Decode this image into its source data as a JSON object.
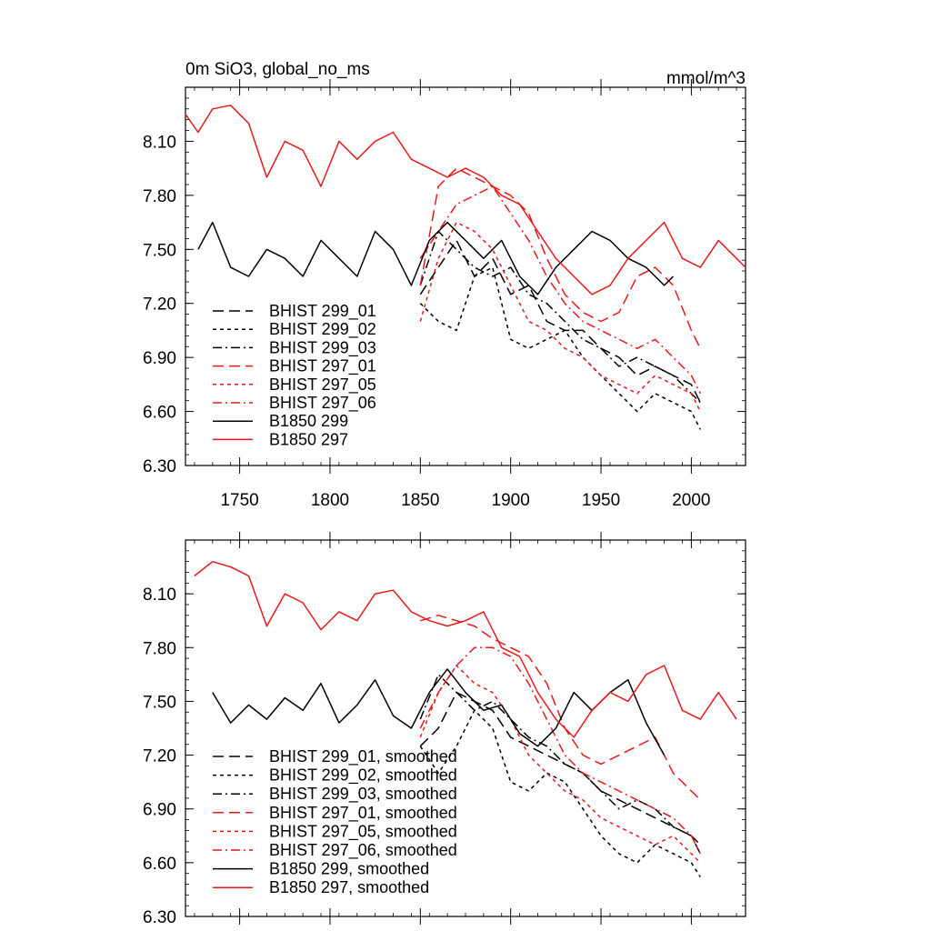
{
  "chart_data": [
    {
      "type": "line",
      "title": "0m SiO3, global_no_ms",
      "units": "mmol/m^3",
      "xlim": [
        1720,
        2030
      ],
      "ylim": [
        6.3,
        8.4
      ],
      "xticks": [
        1750,
        1800,
        1850,
        1900,
        1950,
        2000
      ],
      "xtick_labels": [
        "1750",
        "1800",
        "1850",
        "1900",
        "1950",
        "2000"
      ],
      "yticks": [
        6.3,
        6.6,
        6.9,
        7.2,
        7.5,
        7.8,
        8.1
      ],
      "ytick_labels": [
        "6.30",
        "6.60",
        "6.90",
        "7.20",
        "7.50",
        "7.80",
        "8.10"
      ],
      "legend_position": "bottom-left",
      "series": [
        {
          "name": "BHIST 299_01",
          "color": "#000000",
          "dash": "long-dash",
          "x": [
            1850,
            1860,
            1870,
            1880,
            1890,
            1900,
            1910,
            1920,
            1930,
            1940,
            1950,
            1960,
            1970,
            1980,
            1990,
            2000,
            2005
          ],
          "y": [
            7.25,
            7.4,
            7.55,
            7.35,
            7.45,
            7.25,
            7.3,
            7.1,
            7.05,
            7.05,
            6.95,
            6.9,
            6.8,
            6.85,
            6.8,
            6.75,
            6.65
          ]
        },
        {
          "name": "BHIST 299_02",
          "color": "#000000",
          "dash": "short-dash",
          "x": [
            1850,
            1860,
            1870,
            1880,
            1890,
            1900,
            1910,
            1920,
            1930,
            1940,
            1950,
            1960,
            1970,
            1980,
            1990,
            2000,
            2005
          ],
          "y": [
            7.2,
            7.1,
            7.05,
            7.35,
            7.4,
            7.0,
            6.95,
            7.0,
            7.05,
            6.9,
            6.8,
            6.7,
            6.6,
            6.7,
            6.65,
            6.6,
            6.5
          ]
        },
        {
          "name": "BHIST 299_03",
          "color": "#000000",
          "dash": "dash-dot",
          "x": [
            1850,
            1860,
            1870,
            1880,
            1890,
            1900,
            1910,
            1920,
            1930,
            1940,
            1950,
            1960,
            1970,
            1980,
            1990,
            2000,
            2005
          ],
          "y": [
            7.3,
            7.6,
            7.5,
            7.4,
            7.35,
            7.4,
            7.25,
            7.2,
            7.1,
            7.0,
            6.95,
            6.85,
            6.9,
            6.85,
            6.8,
            6.7,
            6.65
          ]
        },
        {
          "name": "BHIST 297_01",
          "color": "#e8191b",
          "dash": "long-dash",
          "x": [
            1850,
            1860,
            1870,
            1880,
            1890,
            1900,
            1910,
            1920,
            1930,
            1940,
            1950,
            1960,
            1970,
            1980,
            1990,
            2000,
            2005
          ],
          "y": [
            7.3,
            7.85,
            7.95,
            7.9,
            7.85,
            7.8,
            7.7,
            7.45,
            7.25,
            7.15,
            7.1,
            7.15,
            7.35,
            7.4,
            7.3,
            7.05,
            6.95
          ]
        },
        {
          "name": "BHIST 297_05",
          "color": "#e8191b",
          "dash": "short-dash",
          "x": [
            1850,
            1860,
            1870,
            1880,
            1890,
            1900,
            1910,
            1920,
            1930,
            1940,
            1950,
            1960,
            1970,
            1980,
            1990,
            2000,
            2005
          ],
          "y": [
            7.1,
            7.45,
            7.65,
            7.6,
            7.5,
            7.3,
            7.1,
            7.05,
            6.95,
            6.9,
            6.8,
            6.75,
            6.7,
            6.8,
            6.75,
            6.7,
            6.6
          ]
        },
        {
          "name": "BHIST 297_06",
          "color": "#e8191b",
          "dash": "dash-dot",
          "x": [
            1850,
            1860,
            1870,
            1880,
            1890,
            1900,
            1910,
            1920,
            1930,
            1940,
            1950,
            1960,
            1970,
            1980,
            1990,
            2000,
            2005
          ],
          "y": [
            7.45,
            7.6,
            7.75,
            7.8,
            7.85,
            7.7,
            7.55,
            7.35,
            7.2,
            7.1,
            7.05,
            7.0,
            6.95,
            7.0,
            6.9,
            6.8,
            6.7
          ]
        },
        {
          "name": "B1850 299",
          "color": "#000000",
          "dash": "solid",
          "x": [
            1727,
            1735,
            1745,
            1755,
            1765,
            1775,
            1785,
            1795,
            1805,
            1815,
            1825,
            1835,
            1845,
            1855,
            1865,
            1875,
            1885,
            1895,
            1905,
            1915,
            1925,
            1935,
            1945,
            1955,
            1965,
            1975,
            1985,
            1990
          ],
          "y": [
            7.5,
            7.65,
            7.4,
            7.35,
            7.5,
            7.45,
            7.35,
            7.55,
            7.45,
            7.35,
            7.6,
            7.5,
            7.3,
            7.55,
            7.65,
            7.55,
            7.45,
            7.55,
            7.35,
            7.25,
            7.4,
            7.5,
            7.6,
            7.55,
            7.45,
            7.4,
            7.3,
            7.35
          ]
        },
        {
          "name": "B1850 297",
          "color": "#e8191b",
          "dash": "solid",
          "x": [
            1720,
            1727,
            1735,
            1745,
            1755,
            1765,
            1775,
            1785,
            1795,
            1805,
            1815,
            1825,
            1835,
            1845,
            1855,
            1865,
            1875,
            1885,
            1895,
            1905,
            1915,
            1925,
            1935,
            1945,
            1955,
            1965,
            1975,
            1985,
            1995,
            2005,
            2015,
            2025,
            2030
          ],
          "y": [
            8.25,
            8.15,
            8.28,
            8.3,
            8.2,
            7.9,
            8.1,
            8.05,
            7.85,
            8.1,
            8.0,
            8.1,
            8.15,
            8.0,
            7.95,
            7.9,
            7.95,
            7.9,
            7.8,
            7.75,
            7.6,
            7.45,
            7.35,
            7.25,
            7.3,
            7.45,
            7.55,
            7.65,
            7.45,
            7.4,
            7.55,
            7.45,
            7.4
          ]
        }
      ],
      "legend": [
        {
          "label": "BHIST 299_01",
          "color": "#000000",
          "dash": "long-dash"
        },
        {
          "label": "BHIST 299_02",
          "color": "#000000",
          "dash": "short-dash"
        },
        {
          "label": "BHIST 299_03",
          "color": "#000000",
          "dash": "dash-dot"
        },
        {
          "label": "BHIST 297_01",
          "color": "#e8191b",
          "dash": "long-dash"
        },
        {
          "label": "BHIST 297_05",
          "color": "#e8191b",
          "dash": "short-dash"
        },
        {
          "label": "BHIST 297_06",
          "color": "#e8191b",
          "dash": "dash-dot"
        },
        {
          "label": "B1850 299",
          "color": "#000000",
          "dash": "solid"
        },
        {
          "label": "B1850 297",
          "color": "#e8191b",
          "dash": "solid"
        }
      ]
    },
    {
      "type": "line",
      "title": "",
      "xlim": [
        1720,
        2030
      ],
      "ylim": [
        6.3,
        8.4
      ],
      "xticks": [
        1750,
        1800,
        1850,
        1900,
        1950,
        2000
      ],
      "yticks": [
        6.3,
        6.6,
        6.9,
        7.2,
        7.5,
        7.8,
        8.1
      ],
      "ytick_labels": [
        "6.30",
        "6.60",
        "6.90",
        "7.20",
        "7.50",
        "7.80",
        "8.10"
      ],
      "legend_position": "bottom-left",
      "series": [
        {
          "name": "BHIST 299_01, smoothed",
          "color": "#000000",
          "dash": "long-dash",
          "x": [
            1850,
            1860,
            1870,
            1880,
            1890,
            1900,
            1910,
            1920,
            1930,
            1940,
            1950,
            1960,
            1970,
            1980,
            1990,
            2000,
            2005
          ],
          "y": [
            7.25,
            7.35,
            7.55,
            7.5,
            7.45,
            7.3,
            7.25,
            7.2,
            7.15,
            7.1,
            7.0,
            6.95,
            6.9,
            6.85,
            6.8,
            6.75,
            6.7
          ]
        },
        {
          "name": "BHIST 299_02, smoothed",
          "color": "#000000",
          "dash": "short-dash",
          "x": [
            1850,
            1860,
            1870,
            1880,
            1890,
            1900,
            1910,
            1920,
            1930,
            1940,
            1950,
            1960,
            1970,
            1980,
            1990,
            2000,
            2005
          ],
          "y": [
            7.25,
            7.1,
            7.25,
            7.45,
            7.35,
            7.05,
            7.0,
            7.1,
            7.05,
            6.9,
            6.75,
            6.65,
            6.6,
            6.7,
            6.65,
            6.6,
            6.52
          ]
        },
        {
          "name": "BHIST 299_03, smoothed",
          "color": "#000000",
          "dash": "dash-dot",
          "x": [
            1850,
            1860,
            1870,
            1880,
            1890,
            1900,
            1910,
            1920,
            1930,
            1940,
            1950,
            1960,
            1970,
            1980,
            1990,
            2000,
            2005
          ],
          "y": [
            7.4,
            7.65,
            7.55,
            7.45,
            7.5,
            7.4,
            7.3,
            7.25,
            7.15,
            7.1,
            7.0,
            6.9,
            6.95,
            6.9,
            6.8,
            6.75,
            6.65
          ]
        },
        {
          "name": "BHIST 297_01, smoothed",
          "color": "#e8191b",
          "dash": "long-dash",
          "x": [
            1850,
            1860,
            1870,
            1880,
            1890,
            1900,
            1910,
            1920,
            1930,
            1940,
            1950,
            1960,
            1970,
            1980,
            1990,
            2000,
            2005
          ],
          "y": [
            7.95,
            7.98,
            7.95,
            7.92,
            7.85,
            7.8,
            7.75,
            7.6,
            7.35,
            7.2,
            7.15,
            7.2,
            7.25,
            7.3,
            7.1,
            7.0,
            6.95
          ]
        },
        {
          "name": "BHIST 297_05, smoothed",
          "color": "#e8191b",
          "dash": "short-dash",
          "x": [
            1850,
            1860,
            1870,
            1880,
            1890,
            1900,
            1910,
            1920,
            1930,
            1940,
            1950,
            1960,
            1970,
            1980,
            1990,
            2000,
            2005
          ],
          "y": [
            7.3,
            7.55,
            7.7,
            7.6,
            7.55,
            7.4,
            7.2,
            7.1,
            7.0,
            6.95,
            6.85,
            6.8,
            6.75,
            6.7,
            6.75,
            6.65,
            6.6
          ]
        },
        {
          "name": "BHIST 297_06, smoothed",
          "color": "#e8191b",
          "dash": "dash-dot",
          "x": [
            1850,
            1860,
            1870,
            1880,
            1890,
            1900,
            1910,
            1920,
            1930,
            1940,
            1950,
            1960,
            1970,
            1980,
            1990,
            2000,
            2005
          ],
          "y": [
            7.35,
            7.55,
            7.7,
            7.8,
            7.8,
            7.75,
            7.6,
            7.4,
            7.2,
            7.1,
            7.05,
            7.0,
            6.95,
            6.9,
            6.85,
            6.75,
            6.65
          ]
        },
        {
          "name": "B1850 299, smoothed",
          "color": "#000000",
          "dash": "solid",
          "x": [
            1735,
            1745,
            1755,
            1765,
            1775,
            1785,
            1795,
            1805,
            1815,
            1825,
            1835,
            1845,
            1855,
            1865,
            1875,
            1885,
            1895,
            1905,
            1915,
            1925,
            1935,
            1945,
            1955,
            1965,
            1975,
            1985
          ],
          "y": [
            7.55,
            7.38,
            7.48,
            7.4,
            7.52,
            7.45,
            7.6,
            7.38,
            7.48,
            7.62,
            7.42,
            7.35,
            7.55,
            7.68,
            7.55,
            7.45,
            7.48,
            7.32,
            7.25,
            7.35,
            7.55,
            7.45,
            7.55,
            7.62,
            7.38,
            7.2
          ]
        },
        {
          "name": "B1850 297, smoothed",
          "color": "#e8191b",
          "dash": "solid",
          "x": [
            1725,
            1735,
            1745,
            1755,
            1765,
            1775,
            1785,
            1795,
            1805,
            1815,
            1825,
            1835,
            1845,
            1855,
            1865,
            1875,
            1885,
            1895,
            1905,
            1915,
            1925,
            1935,
            1945,
            1955,
            1965,
            1975,
            1985,
            1995,
            2005,
            2015,
            2025
          ],
          "y": [
            8.2,
            8.28,
            8.25,
            8.2,
            7.92,
            8.1,
            8.05,
            7.9,
            8.0,
            7.95,
            8.1,
            8.12,
            8.0,
            7.95,
            7.92,
            7.95,
            8.0,
            7.8,
            7.75,
            7.55,
            7.4,
            7.3,
            7.45,
            7.55,
            7.5,
            7.65,
            7.7,
            7.45,
            7.4,
            7.55,
            7.4
          ]
        }
      ],
      "legend": [
        {
          "label": "BHIST 299_01, smoothed",
          "color": "#000000",
          "dash": "long-dash"
        },
        {
          "label": "BHIST 299_02, smoothed",
          "color": "#000000",
          "dash": "short-dash"
        },
        {
          "label": "BHIST 299_03, smoothed",
          "color": "#000000",
          "dash": "dash-dot"
        },
        {
          "label": "BHIST 297_01, smoothed",
          "color": "#e8191b",
          "dash": "long-dash"
        },
        {
          "label": "BHIST 297_05, smoothed",
          "color": "#e8191b",
          "dash": "short-dash"
        },
        {
          "label": "BHIST 297_06, smoothed",
          "color": "#e8191b",
          "dash": "dash-dot"
        },
        {
          "label": "B1850 299, smoothed",
          "color": "#000000",
          "dash": "solid"
        },
        {
          "label": "B1850 297, smoothed",
          "color": "#e8191b",
          "dash": "solid"
        }
      ]
    }
  ]
}
